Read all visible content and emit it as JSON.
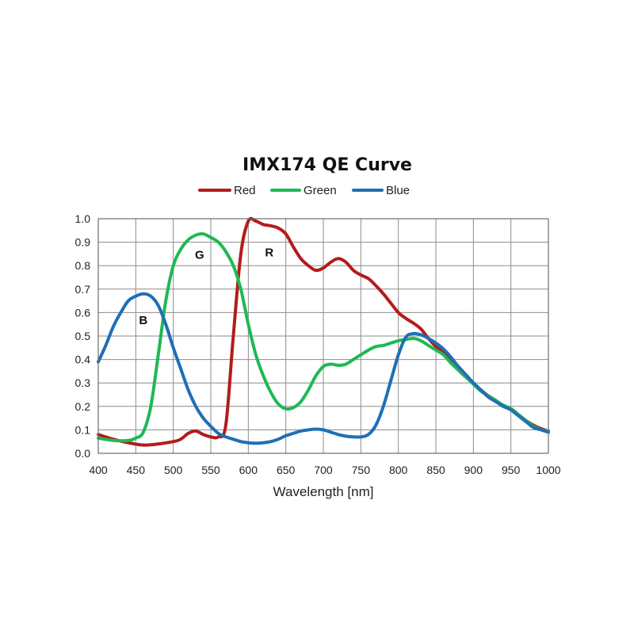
{
  "chart_data": {
    "type": "line",
    "title": "IMX174 QE Curve",
    "xlabel": "Wavelength [nm]",
    "ylabel": "",
    "xlim": [
      400,
      1000
    ],
    "ylim": [
      0,
      1.0
    ],
    "x_ticks": [
      400,
      450,
      500,
      550,
      600,
      650,
      700,
      750,
      800,
      850,
      900,
      950,
      1000
    ],
    "y_ticks": [
      0.0,
      0.1,
      0.2,
      0.3,
      0.4,
      0.5,
      0.6,
      0.7,
      0.8,
      0.9,
      1.0
    ],
    "y_tick_labels": [
      "0.0",
      "0.1",
      "0.2",
      "0.3",
      "0.4",
      "0.5",
      "0.6",
      "0.7",
      "0.8",
      "0.9",
      "1.0"
    ],
    "grid": true,
    "legend_position": "top",
    "series": [
      {
        "name": "Red",
        "color": "#b31b1b",
        "points": [
          [
            400,
            0.08
          ],
          [
            420,
            0.06
          ],
          [
            440,
            0.045
          ],
          [
            460,
            0.035
          ],
          [
            480,
            0.04
          ],
          [
            500,
            0.05
          ],
          [
            510,
            0.06
          ],
          [
            520,
            0.085
          ],
          [
            530,
            0.095
          ],
          [
            540,
            0.08
          ],
          [
            550,
            0.07
          ],
          [
            560,
            0.07
          ],
          [
            570,
            0.12
          ],
          [
            580,
            0.5
          ],
          [
            590,
            0.85
          ],
          [
            600,
            0.99
          ],
          [
            610,
            0.99
          ],
          [
            620,
            0.975
          ],
          [
            630,
            0.97
          ],
          [
            640,
            0.96
          ],
          [
            650,
            0.935
          ],
          [
            660,
            0.88
          ],
          [
            670,
            0.83
          ],
          [
            680,
            0.8
          ],
          [
            690,
            0.78
          ],
          [
            700,
            0.79
          ],
          [
            710,
            0.815
          ],
          [
            720,
            0.83
          ],
          [
            730,
            0.815
          ],
          [
            740,
            0.78
          ],
          [
            750,
            0.76
          ],
          [
            760,
            0.745
          ],
          [
            770,
            0.715
          ],
          [
            780,
            0.68
          ],
          [
            790,
            0.64
          ],
          [
            800,
            0.6
          ],
          [
            810,
            0.575
          ],
          [
            820,
            0.555
          ],
          [
            830,
            0.53
          ],
          [
            840,
            0.49
          ],
          [
            850,
            0.455
          ],
          [
            860,
            0.43
          ],
          [
            870,
            0.39
          ],
          [
            880,
            0.355
          ],
          [
            890,
            0.325
          ],
          [
            900,
            0.3
          ],
          [
            910,
            0.27
          ],
          [
            920,
            0.245
          ],
          [
            930,
            0.225
          ],
          [
            940,
            0.2
          ],
          [
            950,
            0.19
          ],
          [
            960,
            0.165
          ],
          [
            970,
            0.14
          ],
          [
            980,
            0.12
          ],
          [
            990,
            0.105
          ],
          [
            1000,
            0.095
          ]
        ]
      },
      {
        "name": "Green",
        "color": "#1db954",
        "points": [
          [
            400,
            0.065
          ],
          [
            420,
            0.055
          ],
          [
            440,
            0.055
          ],
          [
            450,
            0.065
          ],
          [
            460,
            0.09
          ],
          [
            470,
            0.2
          ],
          [
            480,
            0.42
          ],
          [
            490,
            0.65
          ],
          [
            500,
            0.8
          ],
          [
            510,
            0.87
          ],
          [
            520,
            0.91
          ],
          [
            530,
            0.93
          ],
          [
            540,
            0.935
          ],
          [
            550,
            0.92
          ],
          [
            560,
            0.9
          ],
          [
            570,
            0.86
          ],
          [
            580,
            0.8
          ],
          [
            590,
            0.7
          ],
          [
            600,
            0.55
          ],
          [
            610,
            0.42
          ],
          [
            620,
            0.33
          ],
          [
            630,
            0.26
          ],
          [
            640,
            0.21
          ],
          [
            650,
            0.19
          ],
          [
            660,
            0.195
          ],
          [
            670,
            0.22
          ],
          [
            680,
            0.27
          ],
          [
            690,
            0.33
          ],
          [
            700,
            0.37
          ],
          [
            710,
            0.38
          ],
          [
            720,
            0.375
          ],
          [
            730,
            0.38
          ],
          [
            740,
            0.4
          ],
          [
            750,
            0.42
          ],
          [
            760,
            0.44
          ],
          [
            770,
            0.455
          ],
          [
            780,
            0.46
          ],
          [
            790,
            0.47
          ],
          [
            800,
            0.48
          ],
          [
            810,
            0.485
          ],
          [
            820,
            0.49
          ],
          [
            830,
            0.48
          ],
          [
            840,
            0.46
          ],
          [
            850,
            0.44
          ],
          [
            860,
            0.42
          ],
          [
            870,
            0.385
          ],
          [
            880,
            0.355
          ],
          [
            890,
            0.325
          ],
          [
            900,
            0.295
          ],
          [
            910,
            0.265
          ],
          [
            920,
            0.245
          ],
          [
            930,
            0.225
          ],
          [
            940,
            0.205
          ],
          [
            950,
            0.19
          ],
          [
            960,
            0.165
          ],
          [
            970,
            0.14
          ],
          [
            980,
            0.115
          ],
          [
            990,
            0.1
          ],
          [
            1000,
            0.095
          ]
        ]
      },
      {
        "name": "Blue",
        "color": "#1f6fb5",
        "points": [
          [
            400,
            0.39
          ],
          [
            410,
            0.46
          ],
          [
            420,
            0.54
          ],
          [
            430,
            0.6
          ],
          [
            440,
            0.65
          ],
          [
            450,
            0.67
          ],
          [
            460,
            0.68
          ],
          [
            470,
            0.67
          ],
          [
            480,
            0.63
          ],
          [
            490,
            0.55
          ],
          [
            500,
            0.45
          ],
          [
            510,
            0.36
          ],
          [
            520,
            0.27
          ],
          [
            530,
            0.2
          ],
          [
            540,
            0.15
          ],
          [
            550,
            0.115
          ],
          [
            560,
            0.085
          ],
          [
            570,
            0.07
          ],
          [
            580,
            0.06
          ],
          [
            590,
            0.05
          ],
          [
            600,
            0.045
          ],
          [
            610,
            0.043
          ],
          [
            620,
            0.045
          ],
          [
            630,
            0.05
          ],
          [
            640,
            0.06
          ],
          [
            650,
            0.075
          ],
          [
            660,
            0.085
          ],
          [
            670,
            0.095
          ],
          [
            680,
            0.1
          ],
          [
            690,
            0.103
          ],
          [
            700,
            0.1
          ],
          [
            710,
            0.09
          ],
          [
            720,
            0.08
          ],
          [
            730,
            0.073
          ],
          [
            740,
            0.07
          ],
          [
            750,
            0.07
          ],
          [
            760,
            0.08
          ],
          [
            770,
            0.12
          ],
          [
            780,
            0.2
          ],
          [
            790,
            0.31
          ],
          [
            800,
            0.42
          ],
          [
            810,
            0.495
          ],
          [
            820,
            0.51
          ],
          [
            830,
            0.505
          ],
          [
            840,
            0.49
          ],
          [
            850,
            0.47
          ],
          [
            860,
            0.445
          ],
          [
            870,
            0.41
          ],
          [
            880,
            0.37
          ],
          [
            890,
            0.335
          ],
          [
            900,
            0.3
          ],
          [
            910,
            0.27
          ],
          [
            920,
            0.24
          ],
          [
            930,
            0.22
          ],
          [
            940,
            0.2
          ],
          [
            950,
            0.185
          ],
          [
            960,
            0.16
          ],
          [
            970,
            0.135
          ],
          [
            980,
            0.11
          ],
          [
            990,
            0.1
          ],
          [
            1000,
            0.09
          ]
        ]
      }
    ],
    "annotations": [
      {
        "text": "B",
        "x": 460,
        "y": 0.55
      },
      {
        "text": "G",
        "x": 535,
        "y": 0.83
      },
      {
        "text": "R",
        "x": 628,
        "y": 0.84
      }
    ]
  }
}
